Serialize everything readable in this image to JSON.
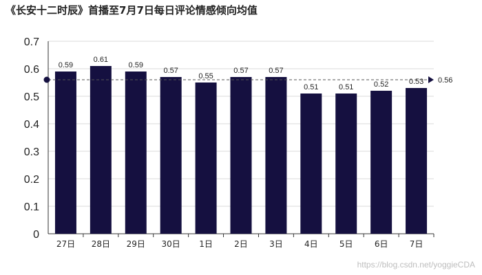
{
  "title": "《长安十二时辰》首播至7月7日每日评论情感倾向均值",
  "watermark": "https://blog.csdn.net/yoggieCDA",
  "colors": {
    "bar": "#151040",
    "axis": "#333333",
    "grid": "#d9d9d9",
    "avg_line": "#555555",
    "avg_marker": "#151040"
  },
  "chart_data": {
    "type": "bar",
    "title": "《长安十二时辰》首播至7月7日每日评论情感倾向均值",
    "categories": [
      "27日",
      "28日",
      "29日",
      "30日",
      "1日",
      "2日",
      "3日",
      "4日",
      "5日",
      "6日",
      "7日"
    ],
    "values": [
      0.59,
      0.61,
      0.59,
      0.57,
      0.55,
      0.57,
      0.57,
      0.51,
      0.51,
      0.52,
      0.53
    ],
    "data_labels": [
      "0.59",
      "0.61",
      "0.59",
      "0.57",
      "0.55",
      "0.57",
      "0.57",
      "0.51",
      "0.51",
      "0.52",
      "0.53"
    ],
    "average": {
      "value": 0.56,
      "label": "0.56",
      "style": "dashed"
    },
    "ylim": [
      0,
      0.7
    ],
    "yticks": [
      "0",
      "0.1",
      "0.2",
      "0.3",
      "0.4",
      "0.5",
      "0.6",
      "0.7"
    ],
    "ytick_values": [
      0,
      0.1,
      0.2,
      0.3,
      0.4,
      0.5,
      0.6,
      0.7
    ],
    "xlabel": "",
    "ylabel": "",
    "grid": true,
    "legend": "none"
  }
}
